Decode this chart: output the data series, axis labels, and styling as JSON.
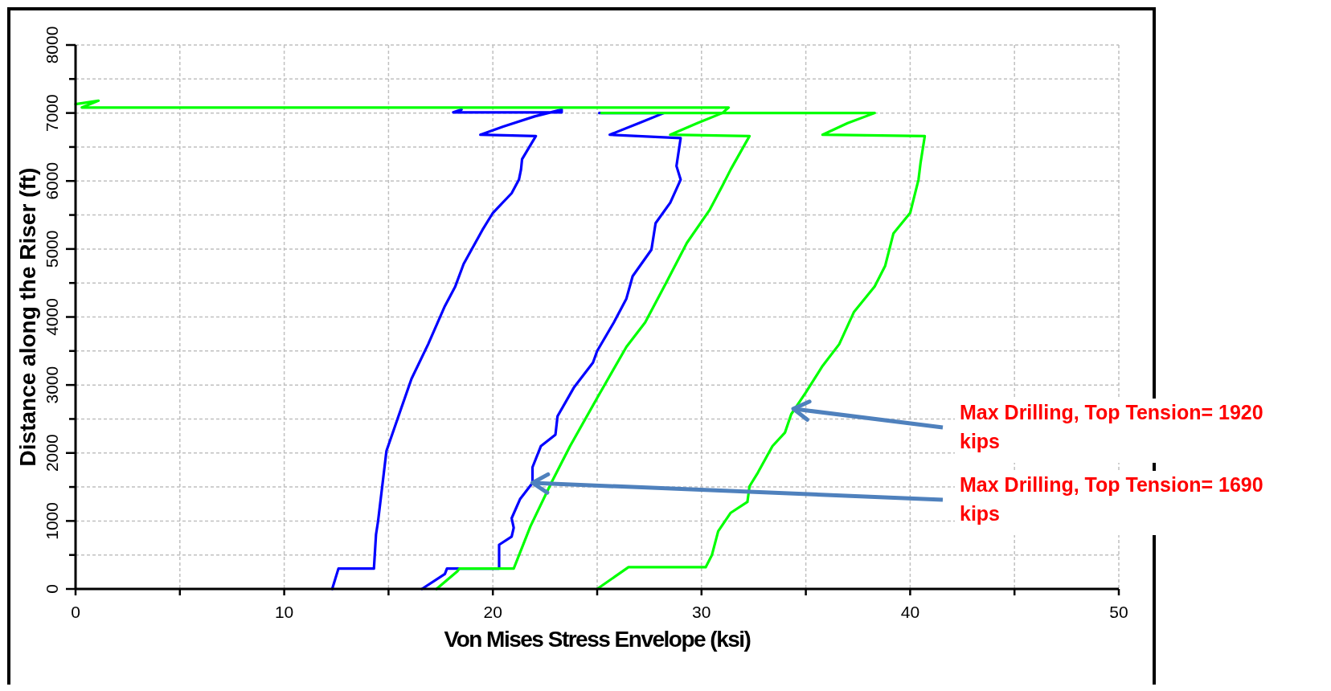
{
  "chart_data": {
    "type": "line",
    "xlabel": "Von Mises Stress Envelope (ksi)",
    "ylabel": "Distance along the Riser (ft)",
    "xlim": [
      0,
      50
    ],
    "ylim": [
      0,
      8000
    ],
    "xticks": [
      0,
      {
        "value": 5,
        "label": null
      },
      10,
      {
        "value": 15,
        "label": null
      },
      20,
      {
        "value": 25,
        "label": null
      },
      30,
      {
        "value": 35,
        "label": null
      },
      40,
      {
        "value": 45,
        "label": null
      },
      50
    ],
    "yticks": [
      0,
      {
        "value": 500,
        "label": null
      },
      1000,
      {
        "value": 1500,
        "label": null
      },
      2000,
      {
        "value": 2500,
        "label": null
      },
      3000,
      {
        "value": 3500,
        "label": null
      },
      4000,
      {
        "value": 4500,
        "label": null
      },
      5000,
      {
        "value": 5500,
        "label": null
      },
      6000,
      {
        "value": 6500,
        "label": null
      },
      7000,
      {
        "value": 7500,
        "label": null
      },
      8000
    ],
    "grid": true,
    "marker": "none",
    "line_style": "solid",
    "series": [
      {
        "color": "#0000ff",
        "x": [
          12.3,
          12.6,
          14.3,
          14.4,
          14.5,
          14.9,
          15.6,
          16.1,
          16.9,
          17.7,
          18.2,
          18.6,
          19.5,
          20.0,
          20.9,
          21.25,
          21.35,
          21.4,
          22.06,
          19.4,
          20.5,
          22.0,
          23.3,
          23.3,
          18.1,
          18.5
        ],
        "values": [
          0,
          300,
          300,
          800,
          1000,
          2030,
          2650,
          3090,
          3600,
          4160,
          4450,
          4780,
          5280,
          5530,
          5820,
          6020,
          6170,
          6320,
          6660,
          6680,
          6800,
          6950,
          7050,
          7010,
          7010,
          7050
        ]
      },
      {
        "color": "#0000ff",
        "x": [
          16.6,
          17.7,
          17.8,
          20.3,
          20.3,
          20.9,
          21.0,
          20.9,
          21.3,
          21.9,
          21.9,
          22.3,
          23.0,
          23.1,
          23.9,
          24.8,
          25.0,
          25.8,
          26.4,
          26.7,
          27.6,
          27.8,
          28.5,
          29.0,
          28.8,
          29.0,
          25.6,
          27.0,
          28.2,
          25.1
        ],
        "values": [
          0,
          220,
          300,
          300,
          650,
          770,
          900,
          1040,
          1320,
          1560,
          1790,
          2100,
          2270,
          2540,
          2970,
          3330,
          3500,
          3920,
          4270,
          4600,
          4990,
          5380,
          5680,
          6020,
          6220,
          6630,
          6680,
          6850,
          7000,
          7000
        ]
      },
      {
        "color": "#00ff00",
        "x": [
          17.3,
          18.3,
          18.4,
          21.0,
          21.8,
          22.8,
          23.7,
          25.0,
          26.4,
          27.3,
          28.3,
          29.3,
          30.4,
          31.0,
          31.4,
          32.3,
          28.5,
          29.8,
          31.0,
          31.3,
          0.3,
          1.1,
          0
        ],
        "values": [
          0,
          260,
          300,
          300,
          920,
          1560,
          2100,
          2810,
          3560,
          3920,
          4500,
          5090,
          5580,
          5930,
          6170,
          6660,
          6680,
          6850,
          7000,
          7080,
          7080,
          7180,
          7130
        ]
      },
      {
        "color": "#00ff00",
        "x": [
          25.0,
          26.5,
          30.2,
          30.5,
          30.8,
          31.4,
          32.2,
          32.3,
          32.7,
          33.4,
          34.0,
          34.3,
          35.0,
          35.8,
          36.6,
          37.3,
          38.3,
          38.8,
          39.2,
          40.0,
          40.4,
          40.5,
          40.7,
          35.8,
          37.0,
          38.3,
          25.2
        ],
        "values": [
          0,
          320,
          320,
          500,
          850,
          1120,
          1280,
          1510,
          1710,
          2100,
          2300,
          2570,
          2890,
          3280,
          3600,
          4070,
          4450,
          4750,
          5230,
          5530,
          6020,
          6270,
          6660,
          6680,
          6850,
          7000,
          7000
        ]
      }
    ],
    "annotations": [
      {
        "text": "Max Drilling, Top Tension= 1920 kips",
        "x": 34.4,
        "y": 2650
      },
      {
        "text": "Max Drilling, Top Tension= 1690 kips",
        "x": 21.9,
        "y": 1560
      }
    ]
  }
}
